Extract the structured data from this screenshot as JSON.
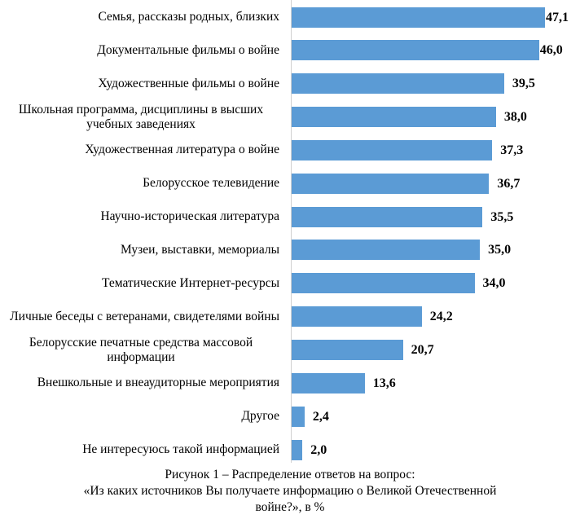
{
  "chart_data": {
    "type": "bar",
    "orientation": "horizontal",
    "categories": [
      "Семья, рассказы родных, близких",
      "Документальные фильмы о войне",
      "Художественные фильмы о войне",
      "Школьная программа, дисциплины в высших учебных заведениях",
      "Художественная литература о войне",
      "Белорусское телевидение",
      "Научно-историческая литература",
      "Музеи, выставки, мемориалы",
      "Тематические Интернет-ресурсы",
      "Личные беседы с ветеранами, свидетелями войны",
      "Белорусские печатные средства массовой информации",
      "Внешкольные и внеаудиторные мероприятия",
      "Другое",
      "Не интересуюсь такой информацией"
    ],
    "values": [
      47.1,
      46.0,
      39.5,
      38.0,
      37.3,
      36.7,
      35.5,
      35.0,
      34.0,
      24.2,
      20.7,
      13.6,
      2.4,
      2.0
    ],
    "value_labels": [
      "47,1",
      "46,0",
      "39,5",
      "38,0",
      "37,3",
      "36,7",
      "35,5",
      "35,0",
      "34,0",
      "24,2",
      "20,7",
      "13,6",
      "2,4",
      "2,0"
    ],
    "bar_color": "#5b9bd5",
    "xlim": [
      0,
      47.1
    ],
    "grid": false,
    "legend": "none",
    "title": "",
    "xlabel": "",
    "ylabel": ""
  },
  "caption": {
    "line1": "Рисунок 1 – Распределение ответов на вопрос:",
    "line2": "«Из каких источников Вы получаете информацию о Великой Отечественной",
    "line3": "войне?», в %"
  }
}
